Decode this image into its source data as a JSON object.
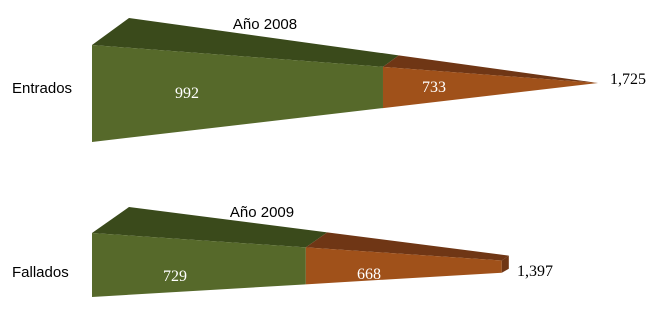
{
  "chart_data": [
    {
      "type": "bar",
      "orientation": "horizontal",
      "stacked": true,
      "style": "3d-cone",
      "title": "Año 2008",
      "categories": [
        "Entrados"
      ],
      "series": [
        {
          "values": [
            992
          ],
          "color": "#56692a"
        },
        {
          "values": [
            733
          ],
          "color": "#a0511a"
        }
      ],
      "total": "1,725",
      "segment_labels": [
        "992",
        "733"
      ]
    },
    {
      "type": "bar",
      "orientation": "horizontal",
      "stacked": true,
      "style": "3d-cone",
      "title": "Año 2009",
      "categories": [
        "Fallados"
      ],
      "series": [
        {
          "values": [
            729
          ],
          "color": "#56692a"
        },
        {
          "values": [
            668
          ],
          "color": "#a0511a"
        }
      ],
      "total": "1,397",
      "segment_labels": [
        "729",
        "668"
      ]
    }
  ],
  "colors": {
    "green_face": "#56692a",
    "green_top": "#3a4a1b",
    "orange_face": "#a0511a",
    "orange_top": "#6f3615",
    "background": "#ffffff"
  }
}
